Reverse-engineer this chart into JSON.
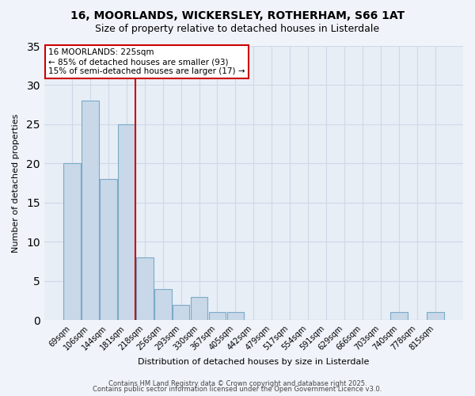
{
  "title1": "16, MOORLANDS, WICKERSLEY, ROTHERHAM, S66 1AT",
  "title2": "Size of property relative to detached houses in Listerdale",
  "xlabel": "Distribution of detached houses by size in Listerdale",
  "ylabel": "Number of detached properties",
  "bin_labels": [
    "69sqm",
    "106sqm",
    "144sqm",
    "181sqm",
    "218sqm",
    "256sqm",
    "293sqm",
    "330sqm",
    "367sqm",
    "405sqm",
    "442sqm",
    "479sqm",
    "517sqm",
    "554sqm",
    "591sqm",
    "629sqm",
    "666sqm",
    "703sqm",
    "740sqm",
    "778sqm",
    "815sqm"
  ],
  "bar_values": [
    20,
    28,
    18,
    25,
    8,
    4,
    2,
    3,
    1,
    1,
    0,
    0,
    0,
    0,
    0,
    0,
    0,
    0,
    1,
    0,
    1
  ],
  "bar_color": "#c8d8e8",
  "bar_edgecolor": "#7aaac8",
  "grid_color": "#d0d8e8",
  "background_color": "#e8eef6",
  "vline_color": "#cc0000",
  "annotation_text": "16 MOORLANDS: 225sqm\n← 85% of detached houses are smaller (93)\n15% of semi-detached houses are larger (17) →",
  "annotation_box_edgecolor": "#cc0000",
  "ylim": [
    0,
    35
  ],
  "yticks": [
    0,
    5,
    10,
    15,
    20,
    25,
    30,
    35
  ],
  "footnote1": "Contains HM Land Registry data © Crown copyright and database right 2025.",
  "footnote2": "Contains public sector information licensed under the Open Government Licence v3.0."
}
